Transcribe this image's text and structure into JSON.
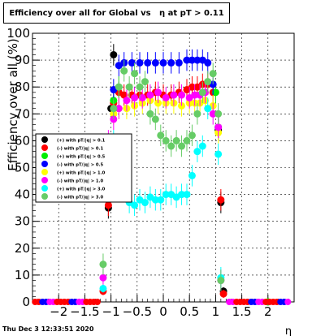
{
  "chart_data": {
    "type": "scatter",
    "title": "Efficiency over all for Global vs   η at pT > 0.11",
    "ylabel": "Efficiency over all (%)",
    "xlabel": "η",
    "xlim": [
      -2.5,
      2.5
    ],
    "ylim": [
      0,
      100
    ],
    "x_ticks": [
      "−2",
      "−1.5",
      "−1",
      "−0.5",
      "0",
      "0.5",
      "1",
      "1.5",
      "2"
    ],
    "y_ticks": [
      "0",
      "10",
      "20",
      "30",
      "40",
      "50",
      "60",
      "70",
      "80",
      "90",
      "100"
    ],
    "grid": true,
    "legend_position": "left-middle",
    "series": [
      {
        "name": "(+) with pT/|q| > 0.1",
        "color": "#000000",
        "points": [
          [
            -1.05,
            35
          ],
          [
            -1.0,
            72
          ],
          [
            -0.95,
            92
          ],
          [
            1.05,
            64
          ],
          [
            1.1,
            37
          ],
          [
            1.15,
            4
          ]
        ]
      },
      {
        "name": "(-) with pT/|q| > 0.1",
        "color": "#ff0000",
        "points": [
          [
            -1.15,
            4
          ],
          [
            -1.05,
            36
          ],
          [
            -0.95,
            74
          ],
          [
            -0.85,
            78
          ],
          [
            -0.75,
            77
          ],
          [
            -0.6,
            77
          ],
          [
            -0.45,
            77
          ],
          [
            -0.3,
            77
          ],
          [
            -0.15,
            78
          ],
          [
            0.0,
            77
          ],
          [
            0.15,
            77
          ],
          [
            0.3,
            78
          ],
          [
            0.45,
            79
          ],
          [
            0.55,
            80
          ],
          [
            0.65,
            80
          ],
          [
            0.75,
            81
          ],
          [
            0.85,
            81
          ],
          [
            0.95,
            78
          ],
          [
            1.05,
            65
          ],
          [
            1.1,
            38
          ],
          [
            1.15,
            3
          ]
        ]
      },
      {
        "name": "(+) with pT/|q| > 0.5",
        "color": "#00ee00",
        "points": [
          [
            -0.95,
            75
          ],
          [
            -0.85,
            80
          ],
          [
            1.0,
            78
          ],
          [
            2.0,
            0
          ]
        ]
      },
      {
        "name": "(-) with pT/|q| > 0.5",
        "color": "#0000ff",
        "points": [
          [
            -0.95,
            79
          ],
          [
            -0.85,
            88
          ],
          [
            -0.75,
            89
          ],
          [
            -0.6,
            89
          ],
          [
            -0.45,
            89
          ],
          [
            -0.3,
            89
          ],
          [
            -0.15,
            89
          ],
          [
            0.0,
            89
          ],
          [
            0.15,
            89
          ],
          [
            0.3,
            89
          ],
          [
            0.45,
            90
          ],
          [
            0.55,
            90
          ],
          [
            0.65,
            90
          ],
          [
            0.75,
            90
          ],
          [
            0.85,
            89
          ],
          [
            0.95,
            81
          ],
          [
            1.05,
            65
          ]
        ]
      },
      {
        "name": "(+) with pT/|q| > 1.0",
        "color": "#ffff00",
        "points": [
          [
            -0.95,
            70
          ],
          [
            -0.85,
            72
          ],
          [
            -0.7,
            72
          ],
          [
            -0.55,
            73
          ],
          [
            -0.4,
            74
          ],
          [
            -0.25,
            75
          ],
          [
            -0.1,
            74
          ],
          [
            0.05,
            74
          ],
          [
            0.2,
            74
          ],
          [
            0.35,
            73
          ],
          [
            0.5,
            74
          ],
          [
            0.6,
            74
          ],
          [
            0.7,
            74
          ],
          [
            0.8,
            75
          ],
          [
            0.95,
            73
          ],
          [
            1.05,
            63
          ]
        ]
      },
      {
        "name": "(-) with pT/|q| > 1.0",
        "color": "#ff00ff",
        "points": [
          [
            -1.15,
            9
          ],
          [
            -1.05,
            60
          ],
          [
            -0.95,
            68
          ],
          [
            -0.85,
            72
          ],
          [
            -0.7,
            75
          ],
          [
            -0.55,
            76
          ],
          [
            -0.4,
            76
          ],
          [
            -0.25,
            77
          ],
          [
            -0.1,
            78
          ],
          [
            0.05,
            76
          ],
          [
            0.2,
            77
          ],
          [
            0.35,
            77
          ],
          [
            0.5,
            76
          ],
          [
            0.6,
            77
          ],
          [
            0.7,
            77
          ],
          [
            0.8,
            78
          ],
          [
            0.95,
            70
          ],
          [
            1.05,
            65
          ],
          [
            1.1,
            8
          ]
        ]
      },
      {
        "name": "(+) with pT/|q| > 3.0",
        "color": "#00ffff",
        "points": [
          [
            -1.15,
            5
          ],
          [
            -0.95,
            60
          ],
          [
            -0.85,
            52
          ],
          [
            -0.75,
            42
          ],
          [
            -0.65,
            37
          ],
          [
            -0.55,
            36
          ],
          [
            -0.45,
            38
          ],
          [
            -0.35,
            37
          ],
          [
            -0.25,
            39
          ],
          [
            -0.15,
            38
          ],
          [
            -0.05,
            38
          ],
          [
            0.05,
            40
          ],
          [
            0.15,
            40
          ],
          [
            0.25,
            39
          ],
          [
            0.35,
            40
          ],
          [
            0.45,
            40
          ],
          [
            0.55,
            47
          ],
          [
            0.65,
            56
          ],
          [
            0.75,
            58
          ],
          [
            0.85,
            72
          ],
          [
            1.05,
            55
          ],
          [
            1.1,
            9
          ]
        ]
      },
      {
        "name": "(-) with pT/|q| > 3.0",
        "color": "#66cc66",
        "points": [
          [
            -1.15,
            14
          ],
          [
            -1.05,
            55
          ],
          [
            -0.95,
            72
          ],
          [
            -0.85,
            80
          ],
          [
            -0.75,
            86
          ],
          [
            -0.65,
            80
          ],
          [
            -0.55,
            85
          ],
          [
            -0.45,
            80
          ],
          [
            -0.35,
            82
          ],
          [
            -0.25,
            70
          ],
          [
            -0.15,
            68
          ],
          [
            -0.05,
            62
          ],
          [
            0.05,
            60
          ],
          [
            0.15,
            58
          ],
          [
            0.25,
            60
          ],
          [
            0.35,
            58
          ],
          [
            0.45,
            60
          ],
          [
            0.55,
            62
          ],
          [
            0.65,
            70
          ],
          [
            0.75,
            78
          ],
          [
            0.85,
            82
          ],
          [
            0.95,
            85
          ],
          [
            1.05,
            70
          ],
          [
            1.1,
            8
          ]
        ]
      }
    ]
  },
  "footer": {
    "timestamp": "Thu Dec  3 12:33:51 2020"
  }
}
